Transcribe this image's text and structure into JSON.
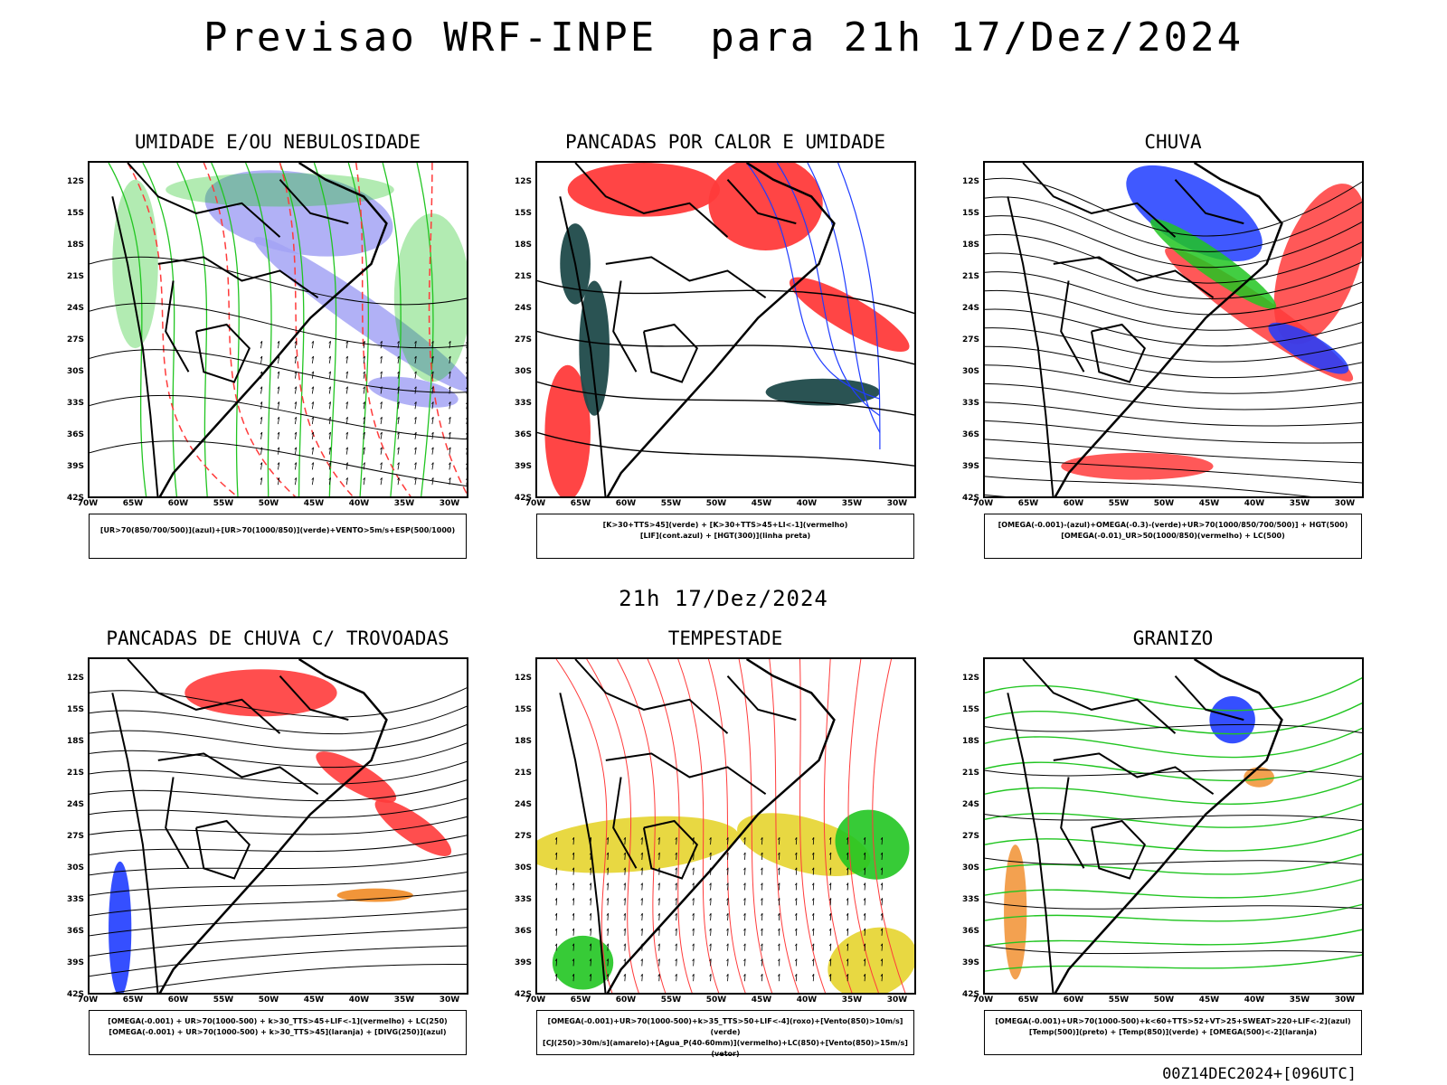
{
  "title": "Previsao WRF-INPE  para 21h 17/Dez/2024",
  "mid_title": "21h 17/Dez/2024",
  "footer": "00Z14DEC2024+[096UTC]",
  "lat_labels": [
    "12S",
    "15S",
    "18S",
    "21S",
    "24S",
    "27S",
    "30S",
    "33S",
    "36S",
    "39S",
    "42S"
  ],
  "lon_labels": [
    "70W",
    "65W",
    "60W",
    "55W",
    "50W",
    "45W",
    "40W",
    "35W",
    "30W"
  ],
  "panels": [
    {
      "title": "UMIDADE E/OU NEBULOSIDADE",
      "legend": [
        "[UR>70(850/700/500)](azul)+[UR>70(1000/850)](verde)+VENTO>5m/s+ESP(500/1000)"
      ]
    },
    {
      "title": "PANCADAS POR CALOR E UMIDADE",
      "legend": [
        "[K>30+TTS>45](verde) + [K>30+TTS>45+LI<-1](vermelho)",
        "[LIF](cont.azul) + [HGT(300)](linha preta)"
      ]
    },
    {
      "title": "CHUVA",
      "legend": [
        "[OMEGA(-0.001)-(azul)+OMEGA(-0.3)-(verde)+UR>70(1000/850/700/500)] + HGT(500)",
        "[OMEGA(-0.01)_UR>50(1000/850)(vermelho) + LC(500)"
      ]
    },
    {
      "title": "PANCADAS DE CHUVA C/ TROVOADAS",
      "legend": [
        "[OMEGA(-0.001) + UR>70(1000-500) + k>30_TTS>45+LIF<-1](vermelho) + LC(250)",
        "[OMEGA(-0.001) + UR>70(1000-500) + k>30_TTS>45](laranja) + [DIVG(250)](azul)"
      ]
    },
    {
      "title": "TEMPESTADE",
      "legend": [
        "[OMEGA(-0.001)+UR>70(1000-500)+k>35_TTS>50+LIF<-4](roxo)+[Vento(850)>10m/s](verde)",
        "[CJ(250)>30m/s](amarelo)+[Agua_P(40-60mm)](vermelho)+LC(850)+[Vento(850)>15m/s](vetor)"
      ]
    },
    {
      "title": "GRANIZO",
      "legend": [
        "[OMEGA(-0.001)+UR>70(1000-500)+k<60+TTS>52+VT>25+SWEAT>220+LIF<-2](azul)",
        "[Temp(500)](preto) + [Temp(850)](verde) + [OMEGA(500)<-2](laranja)"
      ]
    }
  ],
  "colors": {
    "red": "#ff3b3b",
    "green": "#21c521",
    "blue": "#1f3cff",
    "lavender": "#a3a3f5",
    "darkteal": "#1f4a4a",
    "yellow": "#e6d42e",
    "orange": "#f08a24",
    "purple": "#b82cd8"
  }
}
